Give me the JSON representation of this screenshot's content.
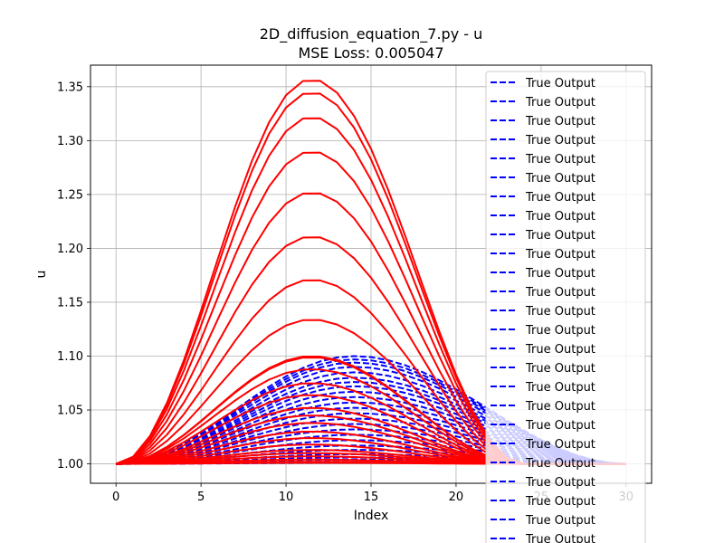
{
  "chart_data": {
    "type": "line",
    "title": "2D_diffusion_equation_7.py - u",
    "subtitle": "MSE Loss: 0.005047",
    "xlabel": "Index",
    "ylabel": "u",
    "xlim": [
      -1.5,
      31.5
    ],
    "ylim": [
      0.982,
      1.37
    ],
    "x_ticks": [
      0,
      5,
      10,
      15,
      20,
      25,
      30
    ],
    "y_ticks": [
      1.0,
      1.05,
      1.1,
      1.15,
      1.2,
      1.25,
      1.3,
      1.35
    ],
    "grid": true,
    "legend_position": "top-right",
    "colors": {
      "predicted": "#ff0000",
      "true": "#0000ff"
    },
    "legend_entries": [
      "True Output",
      "True Output",
      "True Output",
      "True Output",
      "True Output",
      "True Output",
      "True Output",
      "True Output",
      "True Output",
      "True Output",
      "True Output",
      "True Output",
      "True Output",
      "True Output",
      "True Output",
      "True Output",
      "True Output",
      "True Output",
      "True Output",
      "True Output",
      "True Output",
      "True Output",
      "True Output",
      "True Output",
      "True Output"
    ],
    "series_shape": {
      "x": [
        0,
        1,
        2,
        3,
        4,
        5,
        6,
        7,
        8,
        9,
        10,
        11,
        12,
        13,
        14,
        15,
        16,
        17,
        18,
        19,
        20,
        21,
        22,
        23,
        24,
        25,
        26,
        27,
        28,
        29,
        30
      ],
      "predicted_peak_index": 11.5,
      "predicted_end_index": 24,
      "true_peak_index": 14,
      "true_end_index": 30
    },
    "predicted_peaks": [
      1.357,
      1.345,
      1.322,
      1.29,
      1.252,
      1.211,
      1.171,
      1.134,
      1.1,
      1.099,
      1.088,
      1.075,
      1.064,
      1.052,
      1.045,
      1.038,
      1.03,
      1.024,
      1.018,
      1.013,
      1.01,
      1.007,
      1.004,
      1.002,
      1.001
    ],
    "true_peaks": [
      1.1,
      1.097,
      1.094,
      1.09,
      1.085,
      1.08,
      1.076,
      1.072,
      1.067,
      1.062,
      1.057,
      1.052,
      1.047,
      1.042,
      1.037,
      1.032,
      1.027,
      1.022,
      1.017,
      1.013,
      1.009,
      1.006,
      1.004,
      1.002,
      1.001
    ]
  }
}
